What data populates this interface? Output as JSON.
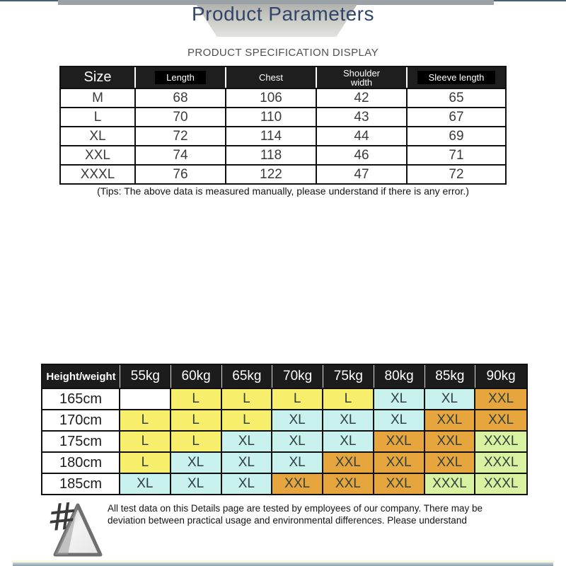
{
  "header": {
    "title": "Product Parameters",
    "subtitle": "PRODUCT SPECIFICATION DISPLAY"
  },
  "spec_table": {
    "columns": [
      "Size",
      "Length",
      "Chest",
      "Shoulder width",
      "Sleeve length"
    ],
    "rows": [
      [
        "M",
        "68",
        "106",
        "42",
        "65"
      ],
      [
        "L",
        "70",
        "110",
        "43",
        "67"
      ],
      [
        "XL",
        "72",
        "114",
        "44",
        "69"
      ],
      [
        "XXL",
        "74",
        "118",
        "46",
        "71"
      ],
      [
        "XXXL",
        "76",
        "122",
        "47",
        "72"
      ]
    ]
  },
  "tips": "(Tips: The above data is measured manually, please understand if there is any error.)",
  "size_chart": {
    "corner_label": "Height/weight",
    "weights": [
      "55kg",
      "60kg",
      "65kg",
      "70kg",
      "75kg",
      "80kg",
      "85kg",
      "90kg"
    ],
    "rows": [
      {
        "height": "165cm",
        "sizes": [
          "",
          "L",
          "L",
          "L",
          "L",
          "XL",
          "XL",
          "XXL"
        ]
      },
      {
        "height": "170cm",
        "sizes": [
          "L",
          "L",
          "L",
          "XL",
          "XL",
          "XL",
          "XXL",
          "XXL"
        ]
      },
      {
        "height": "175cm",
        "sizes": [
          "L",
          "L",
          "XL",
          "XL",
          "XL",
          "XXL",
          "XXL",
          "XXXL"
        ]
      },
      {
        "height": "180cm",
        "sizes": [
          "L",
          "XL",
          "XL",
          "XL",
          "XXL",
          "XXL",
          "XXL",
          "XXXL"
        ]
      },
      {
        "height": "185cm",
        "sizes": [
          "XL",
          "XL",
          "XL",
          "XXL",
          "XXL",
          "XXL",
          "XXXL",
          "XXXL"
        ]
      }
    ],
    "size_colors": {
      "L": "#f7ef6b",
      "XL": "#c9f2ee",
      "XXL": "#e7a63d",
      "XXXL": "#d9f2a1",
      "empty": "#ffffff"
    }
  },
  "footer": {
    "note": "All test data on this Details page are tested by employees of our company. There may be deviation between practical usage and environmental differences. Please understand"
  },
  "decor_colors": {
    "top_bar": "#9ba2a5",
    "title_text": "#31456b",
    "table_header_bg": "#1e1e1e",
    "bottom_bar": "#8d9ea8"
  }
}
